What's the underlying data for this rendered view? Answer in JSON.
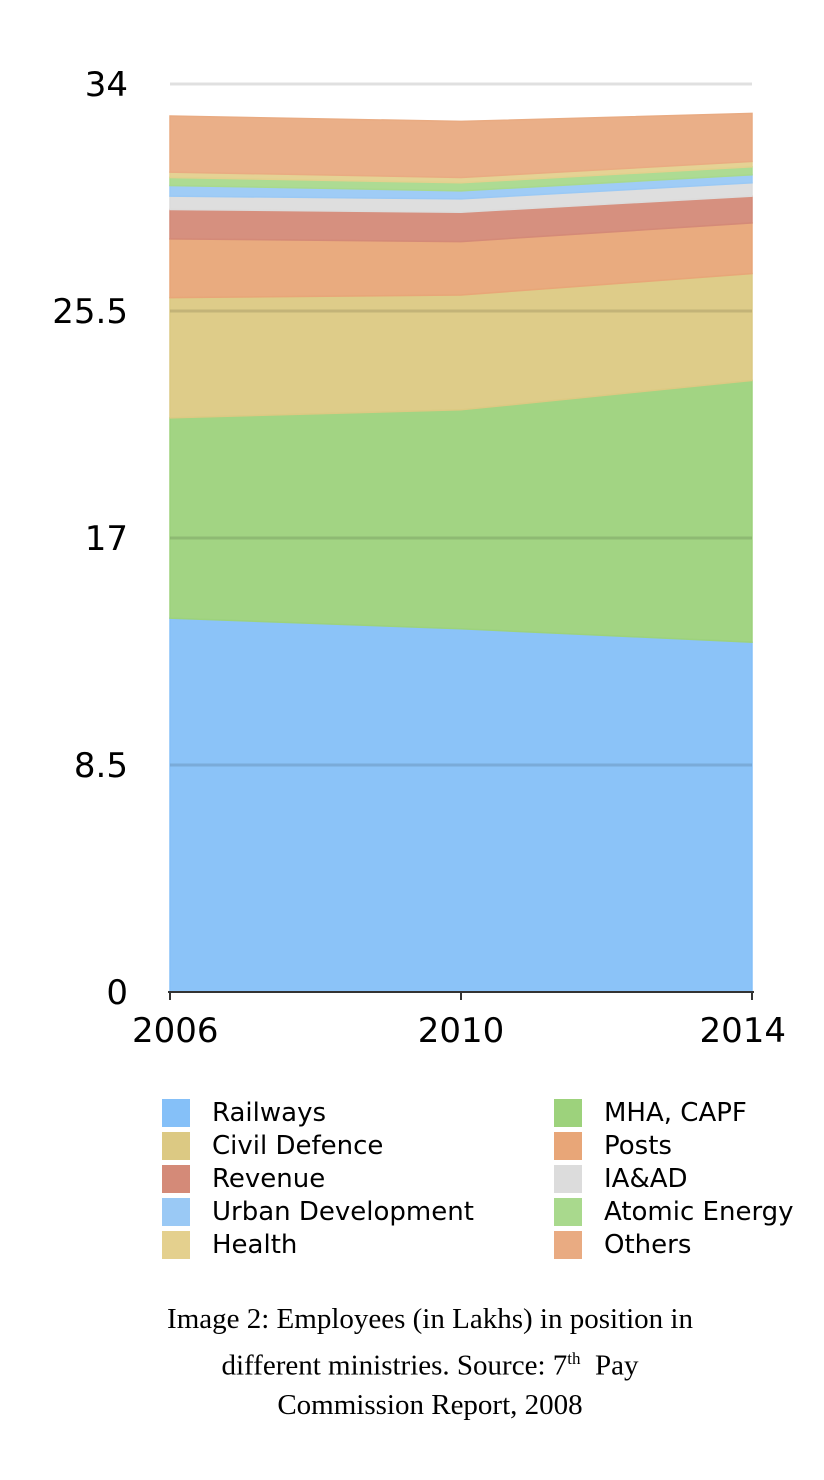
{
  "chart_data": {
    "type": "area",
    "stacked": true,
    "x": [
      "2006",
      "2010",
      "2014"
    ],
    "ylim": [
      0,
      34
    ],
    "yticks": [
      "0",
      "8.5",
      "17",
      "25.5",
      "34"
    ],
    "grid": true,
    "legend_position": "bottom",
    "series": [
      {
        "name": "Railways",
        "color": "#85c0f8",
        "values": [
          14.0,
          13.6,
          13.1
        ]
      },
      {
        "name": "MHA, CAPF",
        "color": "#9dd27c",
        "values": [
          7.5,
          8.2,
          9.8
        ]
      },
      {
        "name": "Civil Defence",
        "color": "#dcc983",
        "values": [
          4.5,
          4.3,
          4.0
        ]
      },
      {
        "name": "Posts",
        "color": "#e8a678",
        "values": [
          2.2,
          2.0,
          1.9
        ]
      },
      {
        "name": "Revenue",
        "color": "#d48a78",
        "values": [
          1.1,
          1.1,
          1.0
        ]
      },
      {
        "name": "IA&AD",
        "color": "#dcdcdc",
        "values": [
          0.5,
          0.5,
          0.5
        ]
      },
      {
        "name": "Urban Development",
        "color": "#9ac9f5",
        "values": [
          0.4,
          0.3,
          0.3
        ]
      },
      {
        "name": "Atomic Energy",
        "color": "#a9d98d",
        "values": [
          0.3,
          0.3,
          0.3
        ]
      },
      {
        "name": "Health",
        "color": "#e4d08e",
        "values": [
          0.2,
          0.2,
          0.2
        ]
      },
      {
        "name": "Others",
        "color": "#e9ab82",
        "values": [
          2.1,
          2.1,
          1.8
        ]
      }
    ],
    "legend": [
      "Railways",
      "MHA, CAPF",
      "Civil Defence",
      "Posts",
      "Revenue",
      "IA&AD",
      "Urban Development",
      "Atomic Energy",
      "Health",
      "Others"
    ]
  },
  "caption": {
    "line1": "Image 2: Employees (in Lakhs) in position in",
    "line2_a": "different ministries. Source: 7",
    "line2_sup": "th",
    "line2_b": "  Pay",
    "line3": "Commission Report, 2008"
  }
}
